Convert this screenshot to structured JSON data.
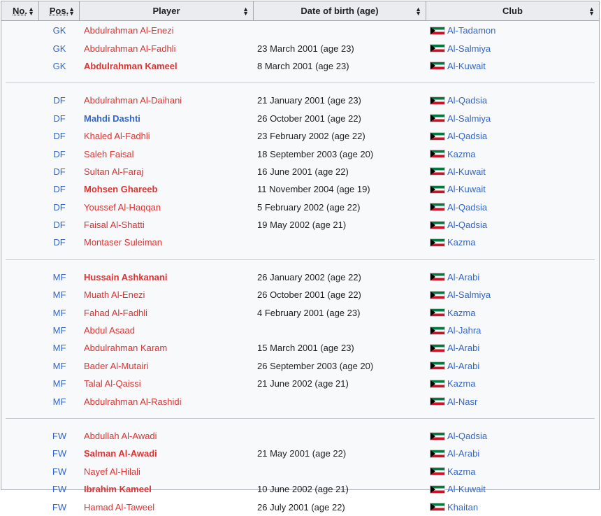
{
  "headers": [
    "No.",
    "Pos.",
    "Player",
    "Date of birth (age)",
    "Club"
  ],
  "groups": [
    [
      [
        "GK",
        "Abdulrahman Al-Enezi",
        "",
        "Al-Tadamon",
        0,
        0
      ],
      [
        "GK",
        "Abdulrahman Al-Fadhli",
        "23 March 2001 (age 23)",
        "Al-Salmiya",
        0,
        0
      ],
      [
        "GK",
        "Abdulrahman Kameel",
        "8 March 2001 (age 23)",
        "Al-Kuwait",
        1,
        0
      ]
    ],
    [
      [
        "DF",
        "Abdulrahman Al-Daihani",
        "21 January 2001 (age 23)",
        "Al-Qadsia",
        0,
        0
      ],
      [
        "DF",
        "Mahdi Dashti",
        "26 October 2001 (age 22)",
        "Al-Salmiya",
        1,
        1
      ],
      [
        "DF",
        "Khaled Al-Fadhli",
        "23 February 2002 (age 22)",
        "Al-Qadsia",
        0,
        0
      ],
      [
        "DF",
        "Saleh Faisal",
        "18 September 2003 (age 20)",
        "Kazma",
        0,
        0
      ],
      [
        "DF",
        "Sultan Al-Faraj",
        "16 June 2001 (age 22)",
        "Al-Kuwait",
        0,
        0
      ],
      [
        "DF",
        "Mohsen Ghareeb",
        "11 November 2004 (age 19)",
        "Al-Kuwait",
        1,
        0
      ],
      [
        "DF",
        "Youssef Al-Haqqan",
        "5 February 2002 (age 22)",
        "Al-Qadsia",
        0,
        0
      ],
      [
        "DF",
        "Faisal Al-Shatti",
        "19 May 2002 (age 21)",
        "Al-Qadsia",
        0,
        0
      ],
      [
        "DF",
        "Montaser Suleiman",
        "",
        "Kazma",
        0,
        0
      ]
    ],
    [
      [
        "MF",
        "Hussain Ashkanani",
        "26 January 2002 (age 22)",
        "Al-Arabi",
        1,
        0
      ],
      [
        "MF",
        "Muath Al-Enezi",
        "26 October 2001 (age 22)",
        "Al-Salmiya",
        0,
        0
      ],
      [
        "MF",
        "Fahad Al-Fadhli",
        "4 February 2001 (age 23)",
        "Kazma",
        0,
        0
      ],
      [
        "MF",
        "Abdul Asaad",
        "",
        "Al-Jahra",
        0,
        0
      ],
      [
        "MF",
        "Abdulrahman Karam",
        "15 March 2001 (age 23)",
        "Al-Arabi",
        0,
        0
      ],
      [
        "MF",
        "Bader Al-Mutairi",
        "26 September 2003 (age 20)",
        "Al-Arabi",
        0,
        0
      ],
      [
        "MF",
        "Talal Al-Qaissi",
        "21 June 2002 (age 21)",
        "Kazma",
        0,
        0
      ],
      [
        "MF",
        "Abdulrahman Al-Rashidi",
        "",
        "Al-Nasr",
        0,
        0
      ]
    ],
    [
      [
        "FW",
        "Abdullah Al-Awadi",
        "",
        "Al-Qadsia",
        0,
        0
      ],
      [
        "FW",
        "Salman Al-Awadi",
        "21 May 2001 (age 22)",
        "Al-Arabi",
        1,
        0
      ],
      [
        "FW",
        "Nayef Al-Hilali",
        "",
        "Kazma",
        0,
        0
      ],
      [
        "FW",
        "Ibrahim Kameel",
        "10 June 2002 (age 21)",
        "Al-Kuwait",
        1,
        0
      ],
      [
        "FW",
        "Hamad Al-Taweel",
        "26 July 2001 (age 22)",
        "Khaitan",
        0,
        0
      ]
    ]
  ],
  "row_fields": [
    "position",
    "player",
    "date_of_birth",
    "club",
    "bold",
    "blue_link"
  ],
  "colors": {
    "link": "#3366cc",
    "redlink": "#dd3333",
    "header_bg": "#eaecf0"
  }
}
